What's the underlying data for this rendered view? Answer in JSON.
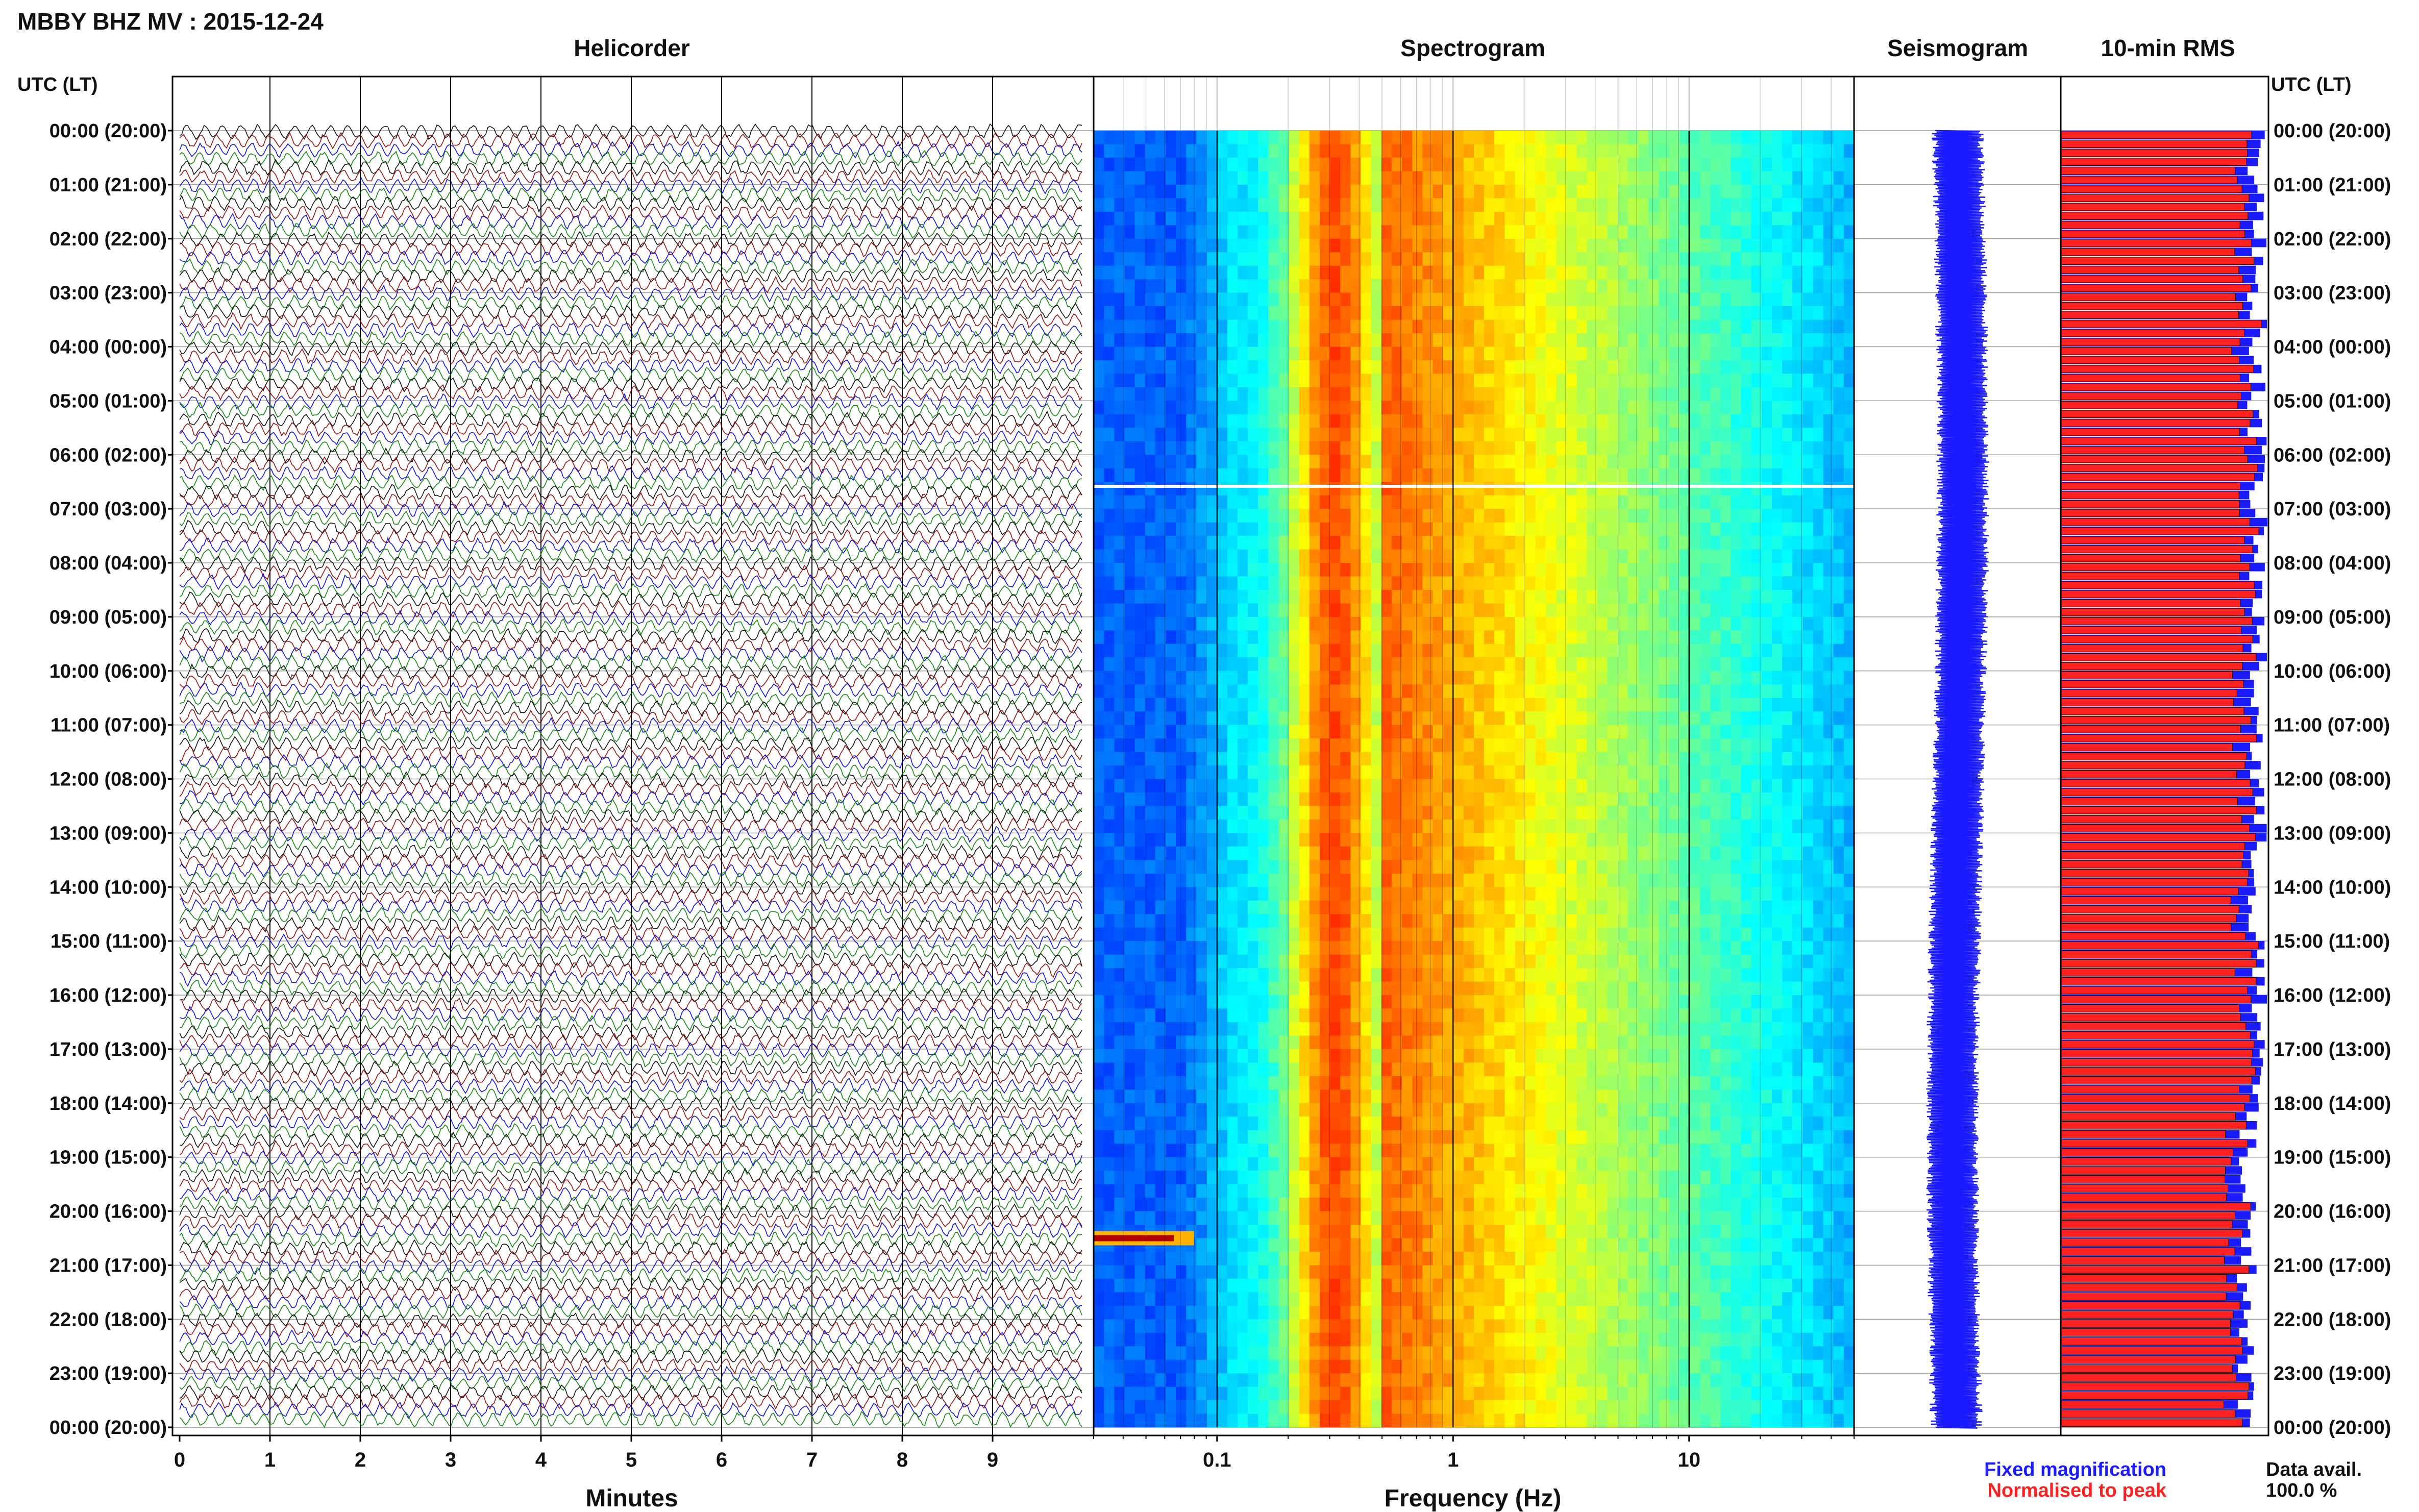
{
  "header": {
    "title": "MBBY BHZ MV : 2015-12-24",
    "utc_label_left": "UTC (LT)",
    "utc_label_right": "UTC (LT)"
  },
  "panels": {
    "helicorder": "Helicorder",
    "spectrogram": "Spectrogram",
    "seismogram": "Seismogram",
    "rms": "10-min RMS"
  },
  "legend": {
    "fixed": "Fixed magnification",
    "normalised": "Normalised to peak",
    "avail_label": "Data avail.",
    "avail_value": "100.0 %"
  },
  "colors": {
    "fixed": "#1a1aff",
    "normalised": "#ff2020",
    "trace_cycle": [
      "#000000",
      "#8b0000",
      "#0000cc",
      "#008000"
    ]
  },
  "chart_data": [
    {
      "type": "line",
      "name": "helicorder",
      "xlabel": "Minutes",
      "x_ticks": [
        "0",
        "1",
        "2",
        "3",
        "4",
        "5",
        "6",
        "7",
        "8",
        "9"
      ],
      "xlim": [
        0,
        10
      ],
      "time_labels": [
        "00:00 (20:00)",
        "01:00 (21:00)",
        "02:00 (22:00)",
        "03:00 (23:00)",
        "04:00 (00:00)",
        "05:00 (01:00)",
        "06:00 (02:00)",
        "07:00 (03:00)",
        "08:00 (04:00)",
        "09:00 (05:00)",
        "10:00 (06:00)",
        "11:00 (07:00)",
        "12:00 (08:00)",
        "13:00 (09:00)",
        "14:00 (10:00)",
        "15:00 (11:00)",
        "16:00 (12:00)",
        "17:00 (13:00)",
        "18:00 (14:00)",
        "19:00 (15:00)",
        "20:00 (16:00)",
        "21:00 (17:00)",
        "22:00 (18:00)",
        "23:00 (19:00)",
        "00:00 (20:00)"
      ],
      "traces": 144
    },
    {
      "type": "heatmap",
      "name": "spectrogram",
      "xlabel": "Frequency (Hz)",
      "x_scale": "log",
      "x_ticks": [
        "0.1",
        "1",
        "10"
      ],
      "xlim": [
        0.03,
        50
      ],
      "peak_band_hz": [
        0.2,
        0.5
      ],
      "gap_time": "06:35",
      "event_time": "20:30",
      "event_band_hz": [
        0.03,
        0.08
      ]
    },
    {
      "type": "line",
      "name": "seismogram",
      "amplitude": "constant"
    },
    {
      "type": "bar",
      "name": "10-min RMS",
      "bins": 144,
      "series": [
        {
          "name": "Fixed magnification",
          "color": "#1a1aff"
        },
        {
          "name": "Normalised to peak",
          "color": "#ff2020"
        }
      ]
    }
  ]
}
